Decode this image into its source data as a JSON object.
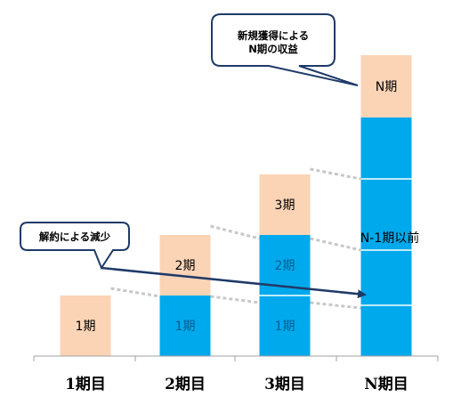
{
  "chart_data": {
    "type": "bar",
    "stacked": true,
    "categories": [
      "1期目",
      "2期目",
      "3期目",
      "N期目"
    ],
    "segments": [
      [
        {
          "label": "1期",
          "value": 1,
          "kind": "new"
        }
      ],
      [
        {
          "label": "1期",
          "value": 1,
          "kind": "retained"
        },
        {
          "label": "2期",
          "value": 1,
          "kind": "new"
        }
      ],
      [
        {
          "label": "1期",
          "value": 1,
          "kind": "retained"
        },
        {
          "label": "2期",
          "value": 1,
          "kind": "retained"
        },
        {
          "label": "3期",
          "value": 1,
          "kind": "new"
        }
      ],
      [
        {
          "label": "",
          "value": 1,
          "kind": "retained"
        },
        {
          "label": "",
          "value": 1,
          "kind": "retained"
        },
        {
          "label": "N-1期以前",
          "value": 1,
          "kind": "retained"
        },
        {
          "label": "",
          "value": 1,
          "kind": "retained"
        },
        {
          "label": "N期",
          "value": 1,
          "kind": "new"
        }
      ]
    ],
    "annotations": [
      {
        "text": "新規獲得による\nN期の収益",
        "target": "N期"
      },
      {
        "text": "解約による減少",
        "target": "arrow"
      }
    ],
    "colors": {
      "new": "#fbd3b5",
      "retained": "#00a9ec",
      "new_label": "#000000",
      "retained_label": "#005f90",
      "connector": "#c8c8c8",
      "arrow": "#1f3a68",
      "callout_border": "#1f3a68",
      "axis": "#a0a0a0"
    },
    "legend": "none",
    "grid": false
  }
}
